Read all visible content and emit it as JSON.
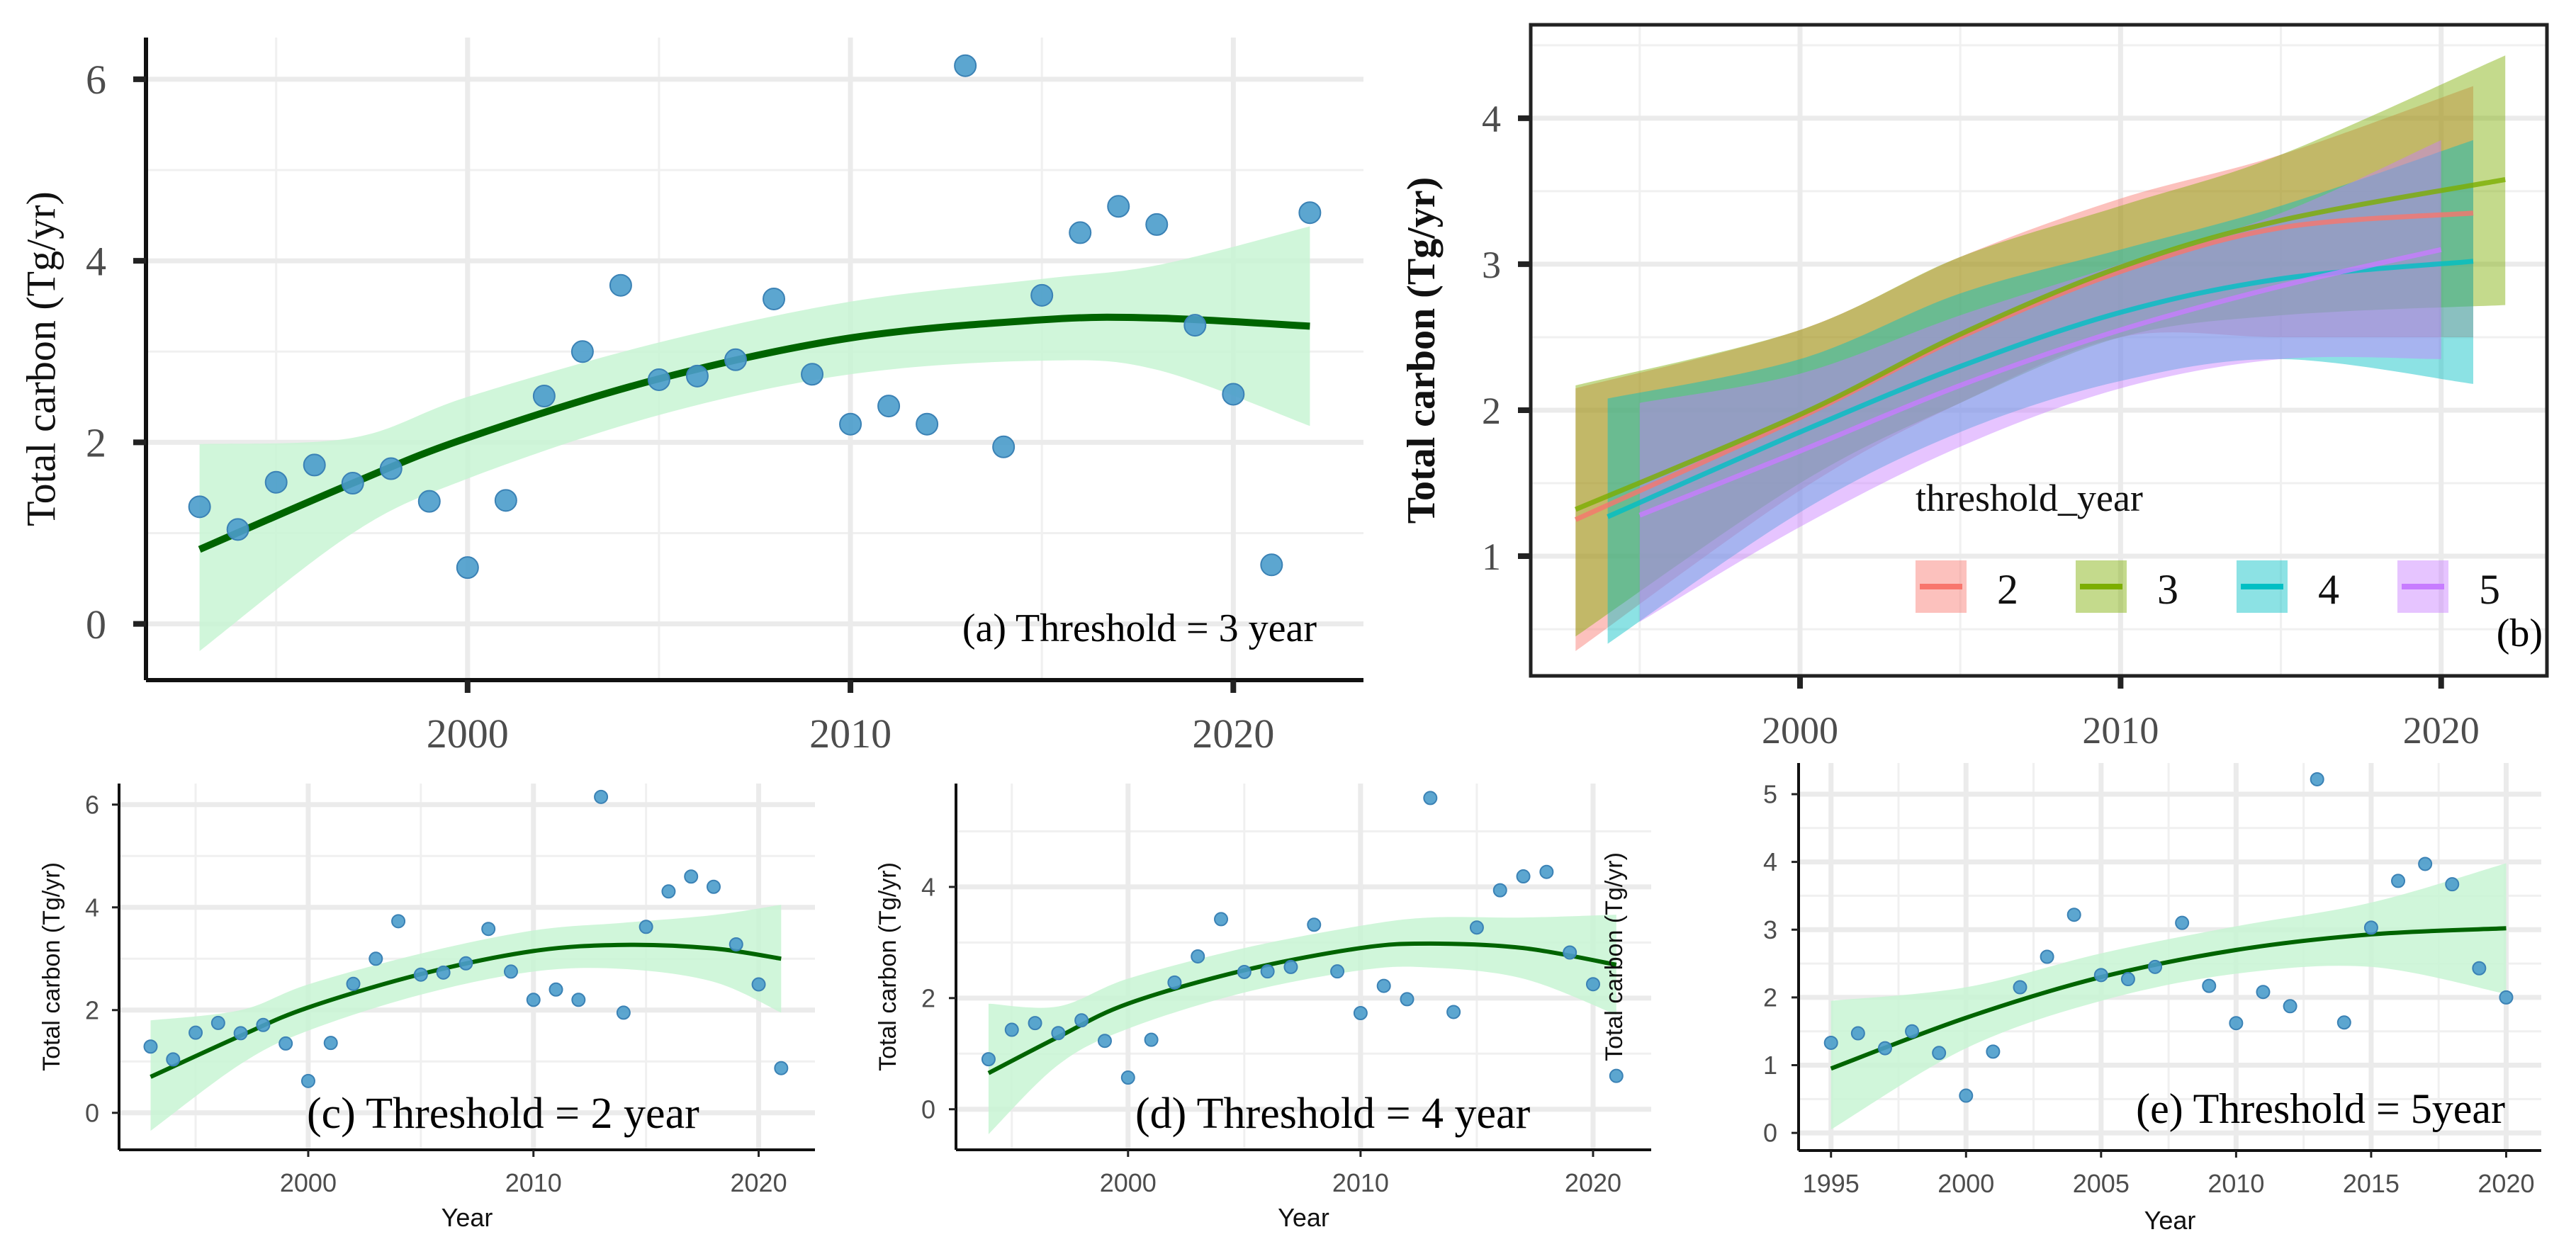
{
  "chart_data": [
    {
      "id": "a",
      "type": "scatter",
      "annotation": "(a) Threshold = 3 year",
      "xlabel": "",
      "ylabel": "Total carbon (Tg/yr)",
      "xlim": [
        1991.6,
        2023.4
      ],
      "ylim": [
        -0.62,
        6.46
      ],
      "x_ticks": [
        2000,
        2010,
        2020
      ],
      "y_ticks": [
        0,
        2,
        4,
        6
      ],
      "grid": true,
      "point_color": "#4a9ccb",
      "fit_color": "#006400",
      "ribbon_color": "#c8f5d4",
      "points": {
        "x": [
          1993,
          1994,
          1995,
          1996,
          1997,
          1998,
          1999,
          2000,
          2001,
          2002,
          2003,
          2004,
          2005,
          2006,
          2007,
          2008,
          2009,
          2010,
          2011,
          2012,
          2013,
          2014,
          2015,
          2016,
          2017,
          2018,
          2019,
          2020,
          2021,
          2022
        ],
        "y": [
          1.29,
          1.04,
          1.56,
          1.75,
          1.55,
          1.71,
          1.35,
          0.62,
          1.36,
          2.51,
          3.0,
          3.73,
          2.69,
          2.73,
          2.91,
          3.58,
          2.75,
          2.2,
          2.4,
          2.2,
          6.15,
          1.95,
          3.62,
          4.31,
          4.6,
          4.4,
          3.29,
          2.53,
          0.65,
          4.53
        ]
      },
      "fit": {
        "x": [
          1993,
          1997,
          2000,
          2005,
          2010,
          2015,
          2018,
          2022
        ],
        "y": [
          0.82,
          1.55,
          2.05,
          2.7,
          3.15,
          3.35,
          3.37,
          3.28
        ],
        "lo": [
          -0.3,
          1.0,
          1.6,
          2.3,
          2.75,
          2.9,
          2.8,
          2.18
        ],
        "hi": [
          1.98,
          2.05,
          2.5,
          3.1,
          3.55,
          3.8,
          3.95,
          4.38
        ]
      }
    },
    {
      "id": "b",
      "type": "line",
      "annotation": "(b)",
      "xlabel": "",
      "ylabel": "Total carbon (Tg/yr)",
      "xlim": [
        1991.6,
        2023.3
      ],
      "ylim": [
        0.18,
        4.64
      ],
      "x_ticks": [
        2000,
        2010,
        2020
      ],
      "y_ticks": [
        1,
        2,
        3,
        4
      ],
      "grid": true,
      "legend": {
        "title": "threshold_year",
        "position": "bottom-right"
      },
      "series": [
        {
          "name": "2",
          "color": "#F8766D",
          "x": [
            1993,
            2000,
            2005,
            2010,
            2015,
            2021
          ],
          "y": [
            1.25,
            1.95,
            2.5,
            2.95,
            3.25,
            3.35
          ],
          "lo": [
            0.35,
            1.45,
            2.05,
            2.5,
            2.5,
            2.5
          ],
          "hi": [
            2.15,
            2.55,
            3.05,
            3.45,
            3.75,
            4.22
          ]
        },
        {
          "name": "3",
          "color": "#7CAE00",
          "x": [
            1993,
            2000,
            2005,
            2010,
            2015,
            2022
          ],
          "y": [
            1.32,
            1.97,
            2.52,
            2.98,
            3.3,
            3.58
          ],
          "lo": [
            0.45,
            1.5,
            2.05,
            2.5,
            2.65,
            2.72
          ],
          "hi": [
            2.17,
            2.55,
            3.05,
            3.4,
            3.75,
            4.43
          ]
        },
        {
          "name": "4",
          "color": "#00BFC4",
          "x": [
            1994,
            2000,
            2005,
            2010,
            2015,
            2021
          ],
          "y": [
            1.27,
            1.85,
            2.3,
            2.67,
            2.9,
            3.02
          ],
          "lo": [
            0.4,
            1.3,
            1.85,
            2.2,
            2.35,
            2.18
          ],
          "hi": [
            2.08,
            2.35,
            2.8,
            3.1,
            3.4,
            3.85
          ]
        },
        {
          "name": "5",
          "color": "#C77CFF",
          "x": [
            1995,
            2000,
            2005,
            2010,
            2015,
            2020
          ],
          "y": [
            1.28,
            1.72,
            2.17,
            2.55,
            2.85,
            3.1
          ],
          "lo": [
            0.55,
            1.2,
            1.75,
            2.15,
            2.35,
            2.35
          ],
          "hi": [
            2.05,
            2.25,
            2.65,
            3.0,
            3.35,
            3.85
          ]
        }
      ]
    },
    {
      "id": "c",
      "type": "scatter",
      "annotation": "(c) Threshold = 2 year",
      "xlabel": "Year",
      "ylabel": "Total carbon (Tg/yr)",
      "xlim": [
        1991.6,
        2022.5
      ],
      "ylim": [
        -0.72,
        6.41
      ],
      "x_ticks": [
        2000,
        2010,
        2020
      ],
      "y_ticks": [
        0,
        2,
        4,
        6
      ],
      "grid": true,
      "point_color": "#4a9ccb",
      "fit_color": "#006400",
      "ribbon_color": "#c8f5d4",
      "points": {
        "x": [
          1993,
          1994,
          1995,
          1996,
          1997,
          1998,
          1999,
          2000,
          2001,
          2002,
          2003,
          2004,
          2005,
          2006,
          2007,
          2008,
          2009,
          2010,
          2011,
          2012,
          2013,
          2014,
          2015,
          2016,
          2017,
          2018,
          2019,
          2020,
          2021
        ],
        "y": [
          1.29,
          1.04,
          1.56,
          1.75,
          1.55,
          1.71,
          1.35,
          0.62,
          1.36,
          2.51,
          3.0,
          3.73,
          2.69,
          2.73,
          2.91,
          3.58,
          2.75,
          2.2,
          2.4,
          2.2,
          6.15,
          1.95,
          3.62,
          4.31,
          4.6,
          4.4,
          3.28,
          2.5,
          0.87
        ]
      },
      "fit": {
        "x": [
          1993,
          1997,
          2000,
          2005,
          2010,
          2014,
          2018,
          2021
        ],
        "y": [
          0.7,
          1.5,
          2.05,
          2.7,
          3.15,
          3.27,
          3.2,
          3.0
        ],
        "lo": [
          -0.35,
          0.95,
          1.6,
          2.3,
          2.75,
          2.8,
          2.55,
          1.95
        ],
        "hi": [
          1.8,
          2.0,
          2.5,
          3.1,
          3.55,
          3.7,
          3.85,
          4.05
        ]
      }
    },
    {
      "id": "d",
      "type": "scatter",
      "annotation": "(d) Threshold = 4 year",
      "xlabel": "Year",
      "ylabel": "Total carbon (Tg/yr)",
      "xlim": [
        1992.6,
        2022.5
      ],
      "ylim": [
        -0.73,
        5.86
      ],
      "x_ticks": [
        2000,
        2010,
        2020
      ],
      "y_ticks": [
        0,
        2,
        4
      ],
      "grid": true,
      "point_color": "#4a9ccb",
      "fit_color": "#006400",
      "ribbon_color": "#c8f5d4",
      "points": {
        "x": [
          1994,
          1995,
          1996,
          1997,
          1998,
          1999,
          2000,
          2001,
          2002,
          2003,
          2004,
          2005,
          2006,
          2007,
          2008,
          2009,
          2010,
          2011,
          2012,
          2013,
          2014,
          2015,
          2016,
          2017,
          2018,
          2019,
          2020,
          2021
        ],
        "y": [
          0.9,
          1.43,
          1.55,
          1.37,
          1.6,
          1.23,
          0.57,
          1.25,
          2.28,
          2.75,
          3.42,
          2.47,
          2.48,
          2.56,
          3.32,
          2.48,
          1.73,
          2.22,
          1.98,
          5.6,
          1.75,
          3.27,
          3.94,
          4.19,
          4.27,
          2.82,
          2.25,
          0.6
        ]
      },
      "fit": {
        "x": [
          1994,
          1997,
          2000,
          2005,
          2010,
          2013,
          2017,
          2021
        ],
        "y": [
          0.65,
          1.3,
          1.9,
          2.5,
          2.9,
          2.98,
          2.9,
          2.6
        ],
        "lo": [
          -0.45,
          0.8,
          1.45,
          2.1,
          2.5,
          2.55,
          2.35,
          1.7
        ],
        "hi": [
          1.9,
          1.85,
          2.35,
          2.9,
          3.3,
          3.45,
          3.45,
          3.5
        ]
      }
    },
    {
      "id": "e",
      "type": "scatter",
      "annotation": "(e) Threshold = 5year",
      "xlabel": "Year",
      "ylabel": "Total carbon (Tg/yr)",
      "xlim": [
        1993.8,
        2021.3
      ],
      "ylim": [
        -0.26,
        5.46
      ],
      "x_ticks": [
        1995,
        2000,
        2005,
        2010,
        2015,
        2020
      ],
      "y_ticks": [
        0,
        1,
        2,
        3,
        4,
        5
      ],
      "grid": true,
      "point_color": "#4a9ccb",
      "fit_color": "#006400",
      "ribbon_color": "#c8f5d4",
      "points": {
        "x": [
          1995,
          1996,
          1997,
          1998,
          1999,
          2000,
          2001,
          2002,
          2003,
          2004,
          2005,
          2006,
          2007,
          2008,
          2009,
          2010,
          2011,
          2012,
          2013,
          2014,
          2015,
          2016,
          2017,
          2018,
          2019,
          2020
        ],
        "y": [
          1.33,
          1.47,
          1.25,
          1.5,
          1.18,
          0.55,
          1.2,
          2.15,
          2.6,
          3.22,
          2.33,
          2.27,
          2.45,
          3.1,
          2.17,
          1.62,
          2.08,
          1.87,
          5.22,
          1.63,
          3.03,
          3.72,
          3.97,
          3.67,
          2.43,
          2.0
        ]
      },
      "fit": {
        "x": [
          1995,
          2000,
          2005,
          2010,
          2015,
          2020
        ],
        "y": [
          0.95,
          1.7,
          2.3,
          2.7,
          2.93,
          3.02
        ],
        "lo": [
          0.05,
          1.25,
          1.95,
          2.35,
          2.45,
          2.05
        ],
        "hi": [
          1.95,
          2.15,
          2.65,
          3.05,
          3.4,
          3.98
        ]
      }
    }
  ]
}
